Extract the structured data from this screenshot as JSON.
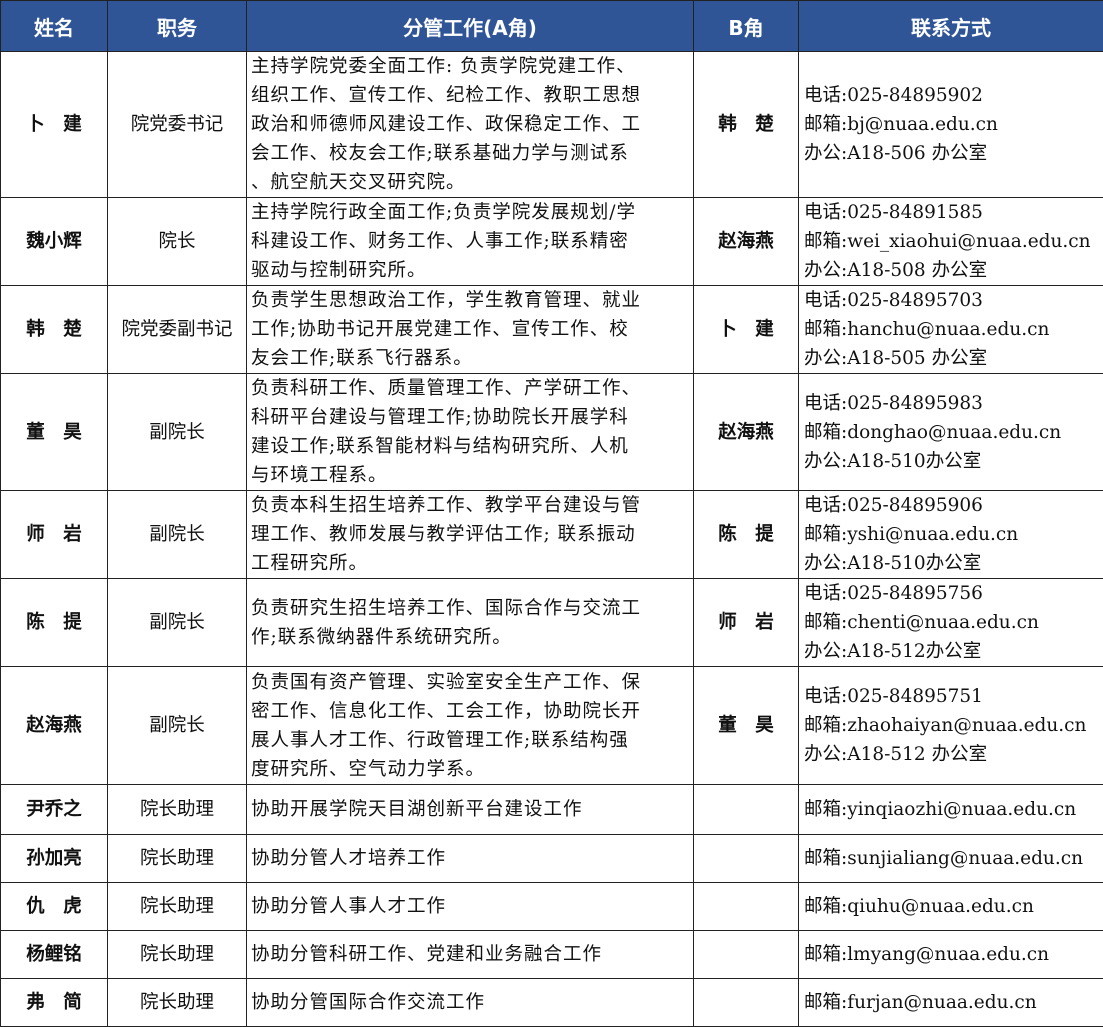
{
  "header": {
    "name": "姓名",
    "position": "职务",
    "work": "分管工作(A角)",
    "b": "B角",
    "contact": "联系方式"
  },
  "header_color": "#2f5597",
  "rows": [
    {
      "name": "卜　建",
      "position": "院党委书记",
      "work": [
        "主持学院党委全面工作: 负责学院党建工作、",
        "组织工作、宣传工作、纪检工作、教职工思想",
        "政治和师德师风建设工作、政保稳定工作、工",
        "会工作、校友会工作;联系基础力学与测试系",
        "、航空航天交叉研究院。"
      ],
      "b": "韩　楚",
      "contact": [
        "电话:025-84895902",
        "邮箱:bj@nuaa.edu.cn",
        "办公:A18-506 办公室"
      ]
    },
    {
      "name": "魏小辉",
      "position": "院长",
      "work": [
        "主持学院行政全面工作;负责学院发展规划/学",
        "科建设工作、财务工作、人事工作;联系精密",
        "驱动与控制研究所。"
      ],
      "b": "赵海燕",
      "contact": [
        "电话:025-84891585",
        "邮箱:wei_xiaohui@nuaa.edu.cn",
        "办公:A18-508 办公室"
      ]
    },
    {
      "name": "韩　楚",
      "position": "院党委副书记",
      "work": [
        "负责学生思想政治工作，学生教育管理、就业",
        "工作;协助书记开展党建工作、宣传工作、校",
        "友会工作;联系飞行器系。"
      ],
      "b": "卜　建",
      "contact": [
        "电话:025-84895703",
        "邮箱:hanchu@nuaa.edu.cn",
        "办公:A18-505 办公室"
      ]
    },
    {
      "name": "董　昊",
      "position": "副院长",
      "work": [
        "负责科研工作、质量管理工作、产学研工作、",
        "科研平台建设与管理工作;协助院长开展学科",
        "建设工作;联系智能材料与结构研究所、人机",
        "与环境工程系。"
      ],
      "b": "赵海燕",
      "contact": [
        "电话:025-84895983",
        "邮箱:donghao@nuaa.edu.cn",
        "办公:A18-510办公室"
      ]
    },
    {
      "name": "师　岩",
      "position": "副院长",
      "work": [
        "负责本科生招生培养工作、教学平台建设与管",
        "理工作、教师发展与教学评估工作; 联系振动",
        "工程研究所。"
      ],
      "b": "陈　提",
      "contact": [
        "电话:025-84895906",
        "邮箱:yshi@nuaa.edu.cn",
        "办公:A18-510办公室"
      ]
    },
    {
      "name": "陈　提",
      "position": "副院长",
      "work": [
        "负责研究生招生培养工作、国际合作与交流工",
        "作;联系微纳器件系统研究所。"
      ],
      "b": "师　岩",
      "contact": [
        "电话:025-84895756",
        "邮箱:chenti@nuaa.edu.cn",
        "办公:A18-512办公室"
      ]
    },
    {
      "name": "赵海燕",
      "position": "副院长",
      "work": [
        "负责国有资产管理、实验室安全生产工作、保",
        "密工作、信息化工作、工会工作，协助院长开",
        "展人事人才工作、行政管理工作;联系结构强",
        "度研究所、空气动力学系。"
      ],
      "b": "董　昊",
      "contact": [
        "电话:025-84895751",
        "邮箱:zhaohaiyan@nuaa.edu.cn",
        "办公:A18-512 办公室"
      ]
    },
    {
      "name": "尹乔之",
      "position": "院长助理",
      "work": [
        "协助开展学院天目湖创新平台建设工作"
      ],
      "b": "",
      "contact": [
        "邮箱:yinqiaozhi@nuaa.edu.cn"
      ]
    },
    {
      "name": "孙加亮",
      "position": "院长助理",
      "work": [
        "协助分管人才培养工作"
      ],
      "b": "",
      "contact": [
        "邮箱:sunjialiang@nuaa.edu.cn"
      ]
    },
    {
      "name": "仇　虎",
      "position": "院长助理",
      "work": [
        "协助分管人事人才工作"
      ],
      "b": "",
      "contact": [
        "邮箱:qiuhu@nuaa.edu.cn"
      ]
    },
    {
      "name": "杨鲤铭",
      "position": "院长助理",
      "work": [
        "协助分管科研工作、党建和业务融合工作"
      ],
      "b": "",
      "contact": [
        "邮箱:lmyang@nuaa.edu.cn"
      ]
    },
    {
      "name": "弗　简",
      "position": "院长助理",
      "work": [
        "协助分管国际合作交流工作"
      ],
      "b": "",
      "contact": [
        "邮箱:furjan@nuaa.edu.cn"
      ]
    }
  ]
}
